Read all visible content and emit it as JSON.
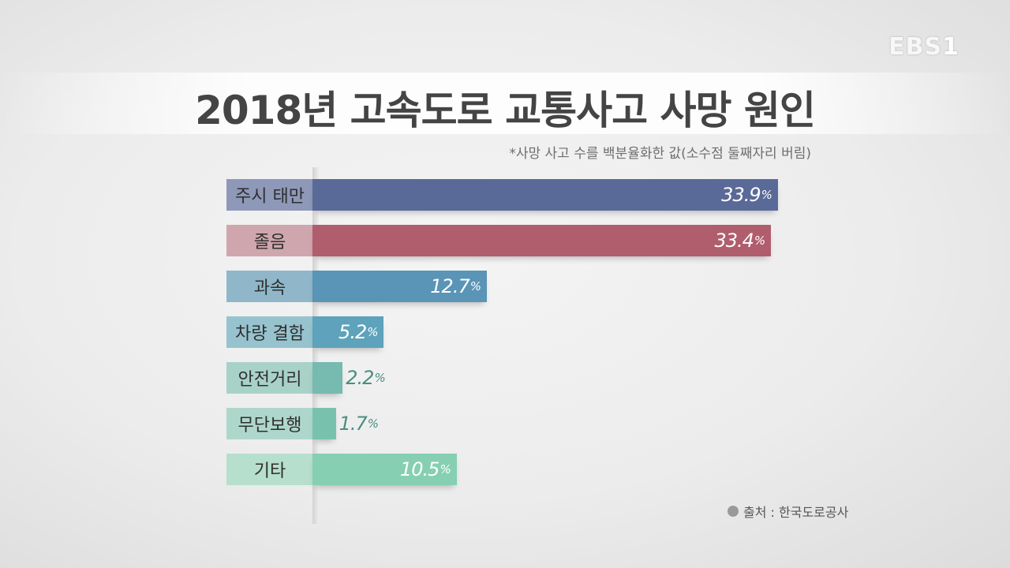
{
  "logo": {
    "text": "EBS",
    "num": "1"
  },
  "chart_data": {
    "type": "bar",
    "orientation": "horizontal",
    "title": "2018년 고속도로 교통사고 사망 원인",
    "note": "*사망 사고 수를 백분율화한 값(소수점 둘째자리 버림)",
    "source": "출처 : 한국도로공사",
    "unit": "%",
    "categories": [
      "주시 태만",
      "졸음",
      "과속",
      "차량 결함",
      "안전거리",
      "무단보행",
      "기타"
    ],
    "values": [
      33.9,
      33.4,
      12.7,
      5.2,
      2.2,
      1.7,
      10.5
    ],
    "labels": [
      "33.9",
      "33.4",
      "12.7",
      "5.2",
      "2.2",
      "1.7",
      "10.5"
    ],
    "bar_colors": [
      "#5a6a98",
      "#b05d6d",
      "#5a94b6",
      "#5ea2bb",
      "#76bab0",
      "#78c2ad",
      "#86cfb3"
    ],
    "label_bg_colors": [
      "#8e98b8",
      "#cfa6ae",
      "#8fb7c9",
      "#97c3ce",
      "#a8d2c8",
      "#aed7cb",
      "#b6dfcd"
    ],
    "value_inside": [
      true,
      true,
      true,
      true,
      false,
      false,
      true
    ]
  }
}
